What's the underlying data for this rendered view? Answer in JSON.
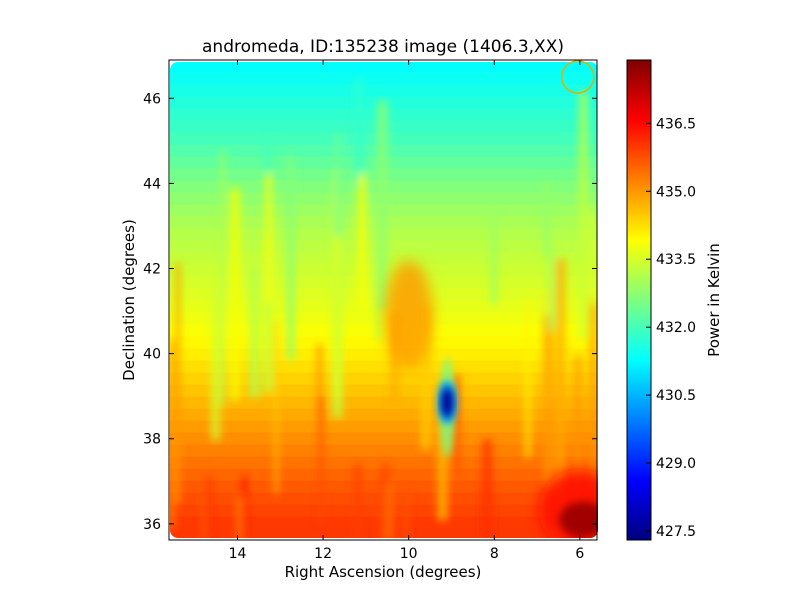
{
  "chart_data": {
    "type": "heatmap",
    "title": "andromeda, ID:135238 image (1406.3,XX)",
    "xlabel": "Right Ascension (degrees)",
    "ylabel": "Declination (degrees)",
    "xlim": [
      15.6,
      5.6
    ],
    "ylim": [
      35.62,
      46.9
    ],
    "x_inverted": true,
    "x_ticks": [
      14,
      12,
      10,
      8,
      6
    ],
    "x_tick_labels": [
      "14",
      "12",
      "10",
      "8",
      "6"
    ],
    "y_ticks": [
      36,
      38,
      40,
      42,
      44,
      46
    ],
    "y_tick_labels": [
      "36",
      "38",
      "40",
      "42",
      "44",
      "46"
    ],
    "colorbar": {
      "label": "Power in Kelvin",
      "range": [
        427.3,
        437.9
      ],
      "ticks": [
        427.5,
        429.0,
        430.5,
        432.0,
        433.5,
        435.0,
        436.5
      ],
      "tick_labels": [
        "427.5",
        "429.0",
        "430.5",
        "432.0",
        "433.5",
        "435.0",
        "436.5"
      ],
      "colormap": "jet"
    },
    "value_profile_by_dec": {
      "dec": [
        36.0,
        37.0,
        38.0,
        39.0,
        40.0,
        41.0,
        42.0,
        43.0,
        44.0,
        45.0,
        46.0,
        46.7
      ],
      "value": [
        436.0,
        435.6,
        435.1,
        434.6,
        434.1,
        433.7,
        433.4,
        433.1,
        432.6,
        432.0,
        431.6,
        431.3
      ]
    },
    "features": [
      {
        "type": "cold_spot",
        "ra": 9.1,
        "dec": 38.85,
        "value": 427.5
      },
      {
        "type": "hot_spot",
        "ra": 6.2,
        "dec": 36.1,
        "value": 437.6
      },
      {
        "type": "hot_region",
        "ra": 10.0,
        "dec": 40.9,
        "value": 435.0
      },
      {
        "type": "beam_circle",
        "ra": 6.05,
        "dec": 46.5,
        "color": "#e0b000"
      }
    ],
    "grid": false
  },
  "colors": {
    "jet": [
      "#00007f",
      "#0000ff",
      "#007fff",
      "#00ffff",
      "#7fff7f",
      "#ffff00",
      "#ff7f00",
      "#ff0000",
      "#7f0000"
    ]
  }
}
